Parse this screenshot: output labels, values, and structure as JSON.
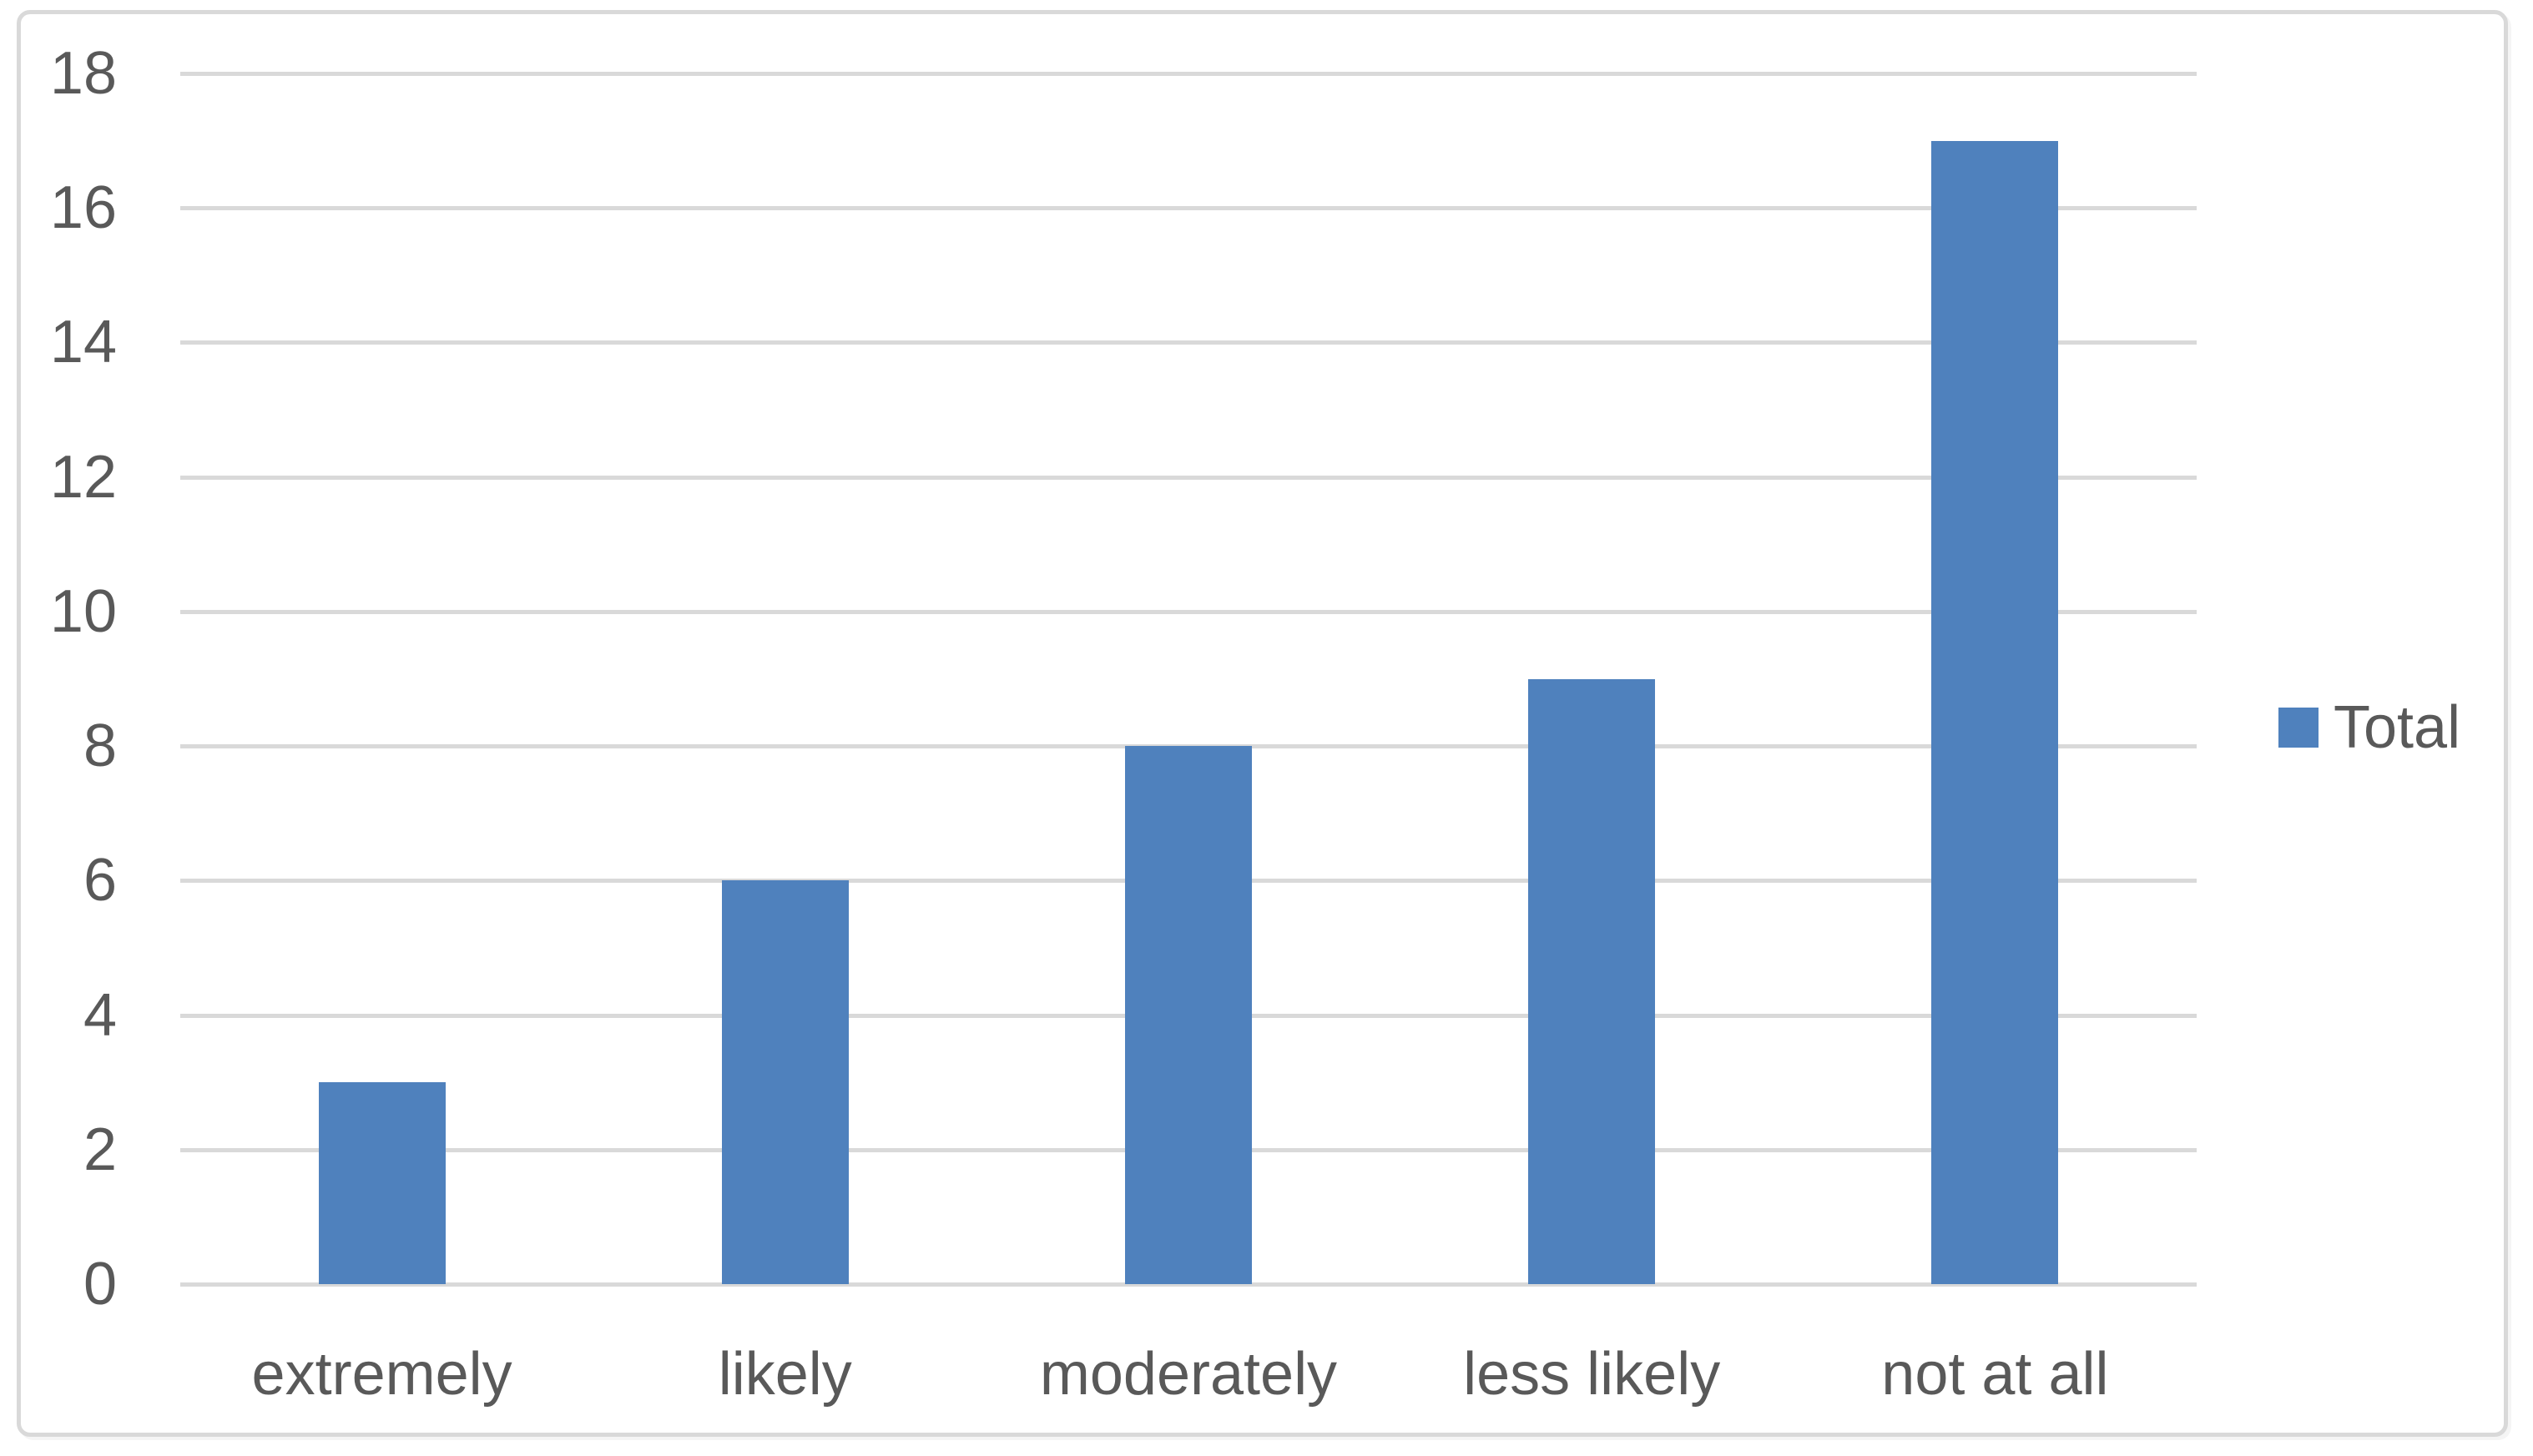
{
  "chart_data": {
    "type": "bar",
    "categories": [
      "extremely",
      "likely",
      "moderately",
      "less likely",
      "not at all"
    ],
    "series": [
      {
        "name": "Total",
        "values": [
          3,
          6,
          8,
          9,
          17
        ]
      }
    ],
    "title": "",
    "xlabel": "",
    "ylabel": "",
    "ylim": [
      0,
      18
    ],
    "yticks": [
      0,
      2,
      4,
      6,
      8,
      10,
      12,
      14,
      16,
      18
    ],
    "grid": "horizontal",
    "legend_position": "middle-right",
    "legend_labels": [
      "Total"
    ],
    "colors": {
      "bar": "#4F81BD",
      "gridline": "#D9D9D9",
      "frame_border": "#D9D9D9",
      "axis_text": "#595959",
      "background": "#FFFFFF"
    }
  }
}
